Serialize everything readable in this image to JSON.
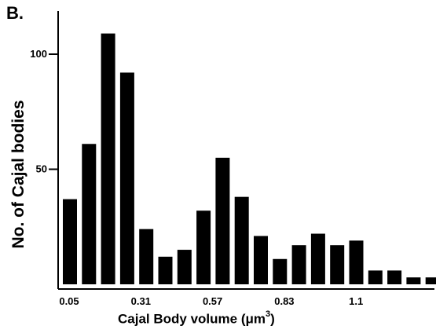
{
  "panel_label": "B.",
  "chart_data": {
    "type": "bar",
    "title": "",
    "xlabel_prefix": "Cajal Body volume (",
    "xlabel_unit": "μm",
    "xlabel_exp": "3",
    "xlabel_suffix": ")",
    "ylabel": "No. of Cajal bodies",
    "x_tick_labels": [
      "0.05",
      "0.31",
      "0.57",
      "0.83",
      "1.1"
    ],
    "y_ticks": [
      50,
      100
    ],
    "ylim": [
      0,
      125
    ],
    "values": [
      37,
      61,
      109,
      92,
      24,
      12,
      15,
      32,
      55,
      38,
      21,
      11,
      17,
      22,
      17,
      19,
      6,
      6,
      3,
      3
    ],
    "bar_color": "#000000",
    "grid": false
  }
}
